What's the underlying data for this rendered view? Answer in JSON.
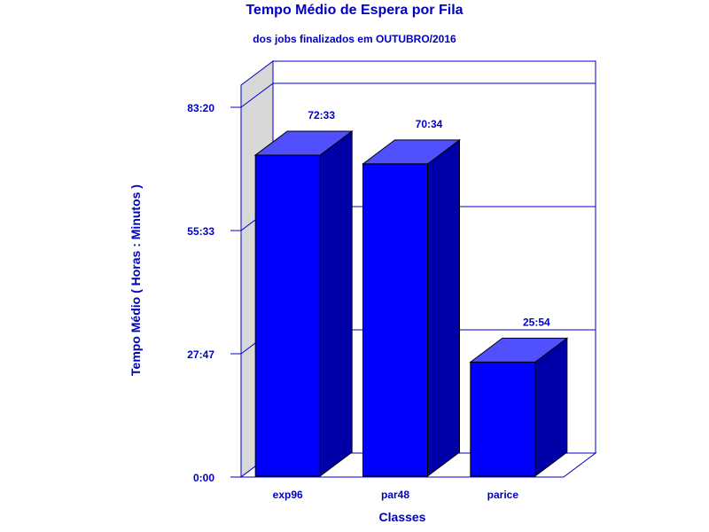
{
  "chart_data": {
    "type": "bar",
    "title": "Tempo Médio de Espera por Fila",
    "subtitle": "dos jobs finalizados em OUTUBRO/2016",
    "xlabel": "Classes",
    "ylabel": "Tempo Médio ( Horas : Minutos )",
    "categories": [
      "exp96",
      "par48",
      "parice"
    ],
    "values": [
      72.55,
      70.5667,
      25.9
    ],
    "value_labels": [
      "72:33",
      "70:34",
      "25:54"
    ],
    "y_ticks": [
      {
        "value": 0,
        "label": "0:00"
      },
      {
        "value": 27.7833,
        "label": "27:47"
      },
      {
        "value": 55.55,
        "label": "55:33"
      },
      {
        "value": 83.3333,
        "label": "83:20"
      }
    ],
    "ylim": [
      0,
      83.3333
    ],
    "grid": true,
    "colors": {
      "front": "#0000ff",
      "side": "#0000a8",
      "top": "#5050ff",
      "text": "#0000c0",
      "axis": "#0000c8",
      "left_wall": "#d8d8d8"
    }
  }
}
